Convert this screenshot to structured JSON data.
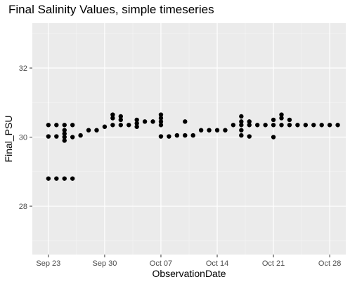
{
  "chart_data": {
    "type": "scatter",
    "title": "Final Salinity Values, simple timeseries",
    "xlabel": "ObservationDate",
    "ylabel": "Final_PSU",
    "xlim": [
      "2022-09-21",
      "2022-10-30"
    ],
    "ylim": [
      26.6,
      33.3
    ],
    "x_ticks": [
      {
        "label": "Sep 23",
        "date": "2022-09-23"
      },
      {
        "label": "Sep 30",
        "date": "2022-09-30"
      },
      {
        "label": "Oct 07",
        "date": "2022-10-07"
      },
      {
        "label": "Oct 14",
        "date": "2022-10-14"
      },
      {
        "label": "Oct 21",
        "date": "2022-10-21"
      },
      {
        "label": "Oct 28",
        "date": "2022-10-28"
      }
    ],
    "y_ticks": [
      {
        "label": "28",
        "value": 28
      },
      {
        "label": "30",
        "value": 30
      },
      {
        "label": "32",
        "value": 32
      }
    ],
    "grid": true,
    "points": [
      {
        "x": "2022-09-23",
        "y": 30.35
      },
      {
        "x": "2022-09-23",
        "y": 30.02
      },
      {
        "x": "2022-09-23",
        "y": 28.8
      },
      {
        "x": "2022-09-24",
        "y": 30.35
      },
      {
        "x": "2022-09-24",
        "y": 30.02
      },
      {
        "x": "2022-09-24",
        "y": 28.8
      },
      {
        "x": "2022-09-25",
        "y": 30.35
      },
      {
        "x": "2022-09-25",
        "y": 30.2
      },
      {
        "x": "2022-09-25",
        "y": 30.1
      },
      {
        "x": "2022-09-25",
        "y": 30.0
      },
      {
        "x": "2022-09-25",
        "y": 29.9
      },
      {
        "x": "2022-09-25",
        "y": 28.8
      },
      {
        "x": "2022-09-26",
        "y": 30.35
      },
      {
        "x": "2022-09-26",
        "y": 30.0
      },
      {
        "x": "2022-09-26",
        "y": 28.8
      },
      {
        "x": "2022-09-27",
        "y": 30.05
      },
      {
        "x": "2022-09-28",
        "y": 30.2
      },
      {
        "x": "2022-09-29",
        "y": 30.2
      },
      {
        "x": "2022-09-30",
        "y": 30.3
      },
      {
        "x": "2022-10-01",
        "y": 30.65
      },
      {
        "x": "2022-10-01",
        "y": 30.55
      },
      {
        "x": "2022-10-01",
        "y": 30.35
      },
      {
        "x": "2022-10-02",
        "y": 30.6
      },
      {
        "x": "2022-10-02",
        "y": 30.5
      },
      {
        "x": "2022-10-02",
        "y": 30.35
      },
      {
        "x": "2022-10-03",
        "y": 30.35
      },
      {
        "x": "2022-10-04",
        "y": 30.5
      },
      {
        "x": "2022-10-04",
        "y": 30.4
      },
      {
        "x": "2022-10-04",
        "y": 30.3
      },
      {
        "x": "2022-10-05",
        "y": 30.45
      },
      {
        "x": "2022-10-06",
        "y": 30.45
      },
      {
        "x": "2022-10-07",
        "y": 30.65
      },
      {
        "x": "2022-10-07",
        "y": 30.55
      },
      {
        "x": "2022-10-07",
        "y": 30.45
      },
      {
        "x": "2022-10-07",
        "y": 30.35
      },
      {
        "x": "2022-10-07",
        "y": 30.02
      },
      {
        "x": "2022-10-08",
        "y": 30.02
      },
      {
        "x": "2022-10-09",
        "y": 30.05
      },
      {
        "x": "2022-10-10",
        "y": 30.45
      },
      {
        "x": "2022-10-10",
        "y": 30.05
      },
      {
        "x": "2022-10-11",
        "y": 30.05
      },
      {
        "x": "2022-10-12",
        "y": 30.2
      },
      {
        "x": "2022-10-13",
        "y": 30.2
      },
      {
        "x": "2022-10-14",
        "y": 30.2
      },
      {
        "x": "2022-10-15",
        "y": 30.2
      },
      {
        "x": "2022-10-16",
        "y": 30.35
      },
      {
        "x": "2022-10-17",
        "y": 30.6
      },
      {
        "x": "2022-10-17",
        "y": 30.45
      },
      {
        "x": "2022-10-17",
        "y": 30.35
      },
      {
        "x": "2022-10-17",
        "y": 30.2
      },
      {
        "x": "2022-10-17",
        "y": 30.05
      },
      {
        "x": "2022-10-18",
        "y": 30.45
      },
      {
        "x": "2022-10-18",
        "y": 30.35
      },
      {
        "x": "2022-10-18",
        "y": 30.02
      },
      {
        "x": "2022-10-19",
        "y": 30.35
      },
      {
        "x": "2022-10-20",
        "y": 30.35
      },
      {
        "x": "2022-10-21",
        "y": 30.5
      },
      {
        "x": "2022-10-21",
        "y": 30.35
      },
      {
        "x": "2022-10-21",
        "y": 30.0
      },
      {
        "x": "2022-10-22",
        "y": 30.65
      },
      {
        "x": "2022-10-22",
        "y": 30.55
      },
      {
        "x": "2022-10-22",
        "y": 30.35
      },
      {
        "x": "2022-10-23",
        "y": 30.5
      },
      {
        "x": "2022-10-23",
        "y": 30.35
      },
      {
        "x": "2022-10-24",
        "y": 30.35
      },
      {
        "x": "2022-10-25",
        "y": 30.35
      },
      {
        "x": "2022-10-26",
        "y": 30.35
      },
      {
        "x": "2022-10-27",
        "y": 30.35
      },
      {
        "x": "2022-10-28",
        "y": 30.35
      },
      {
        "x": "2022-10-29",
        "y": 30.35
      }
    ]
  }
}
